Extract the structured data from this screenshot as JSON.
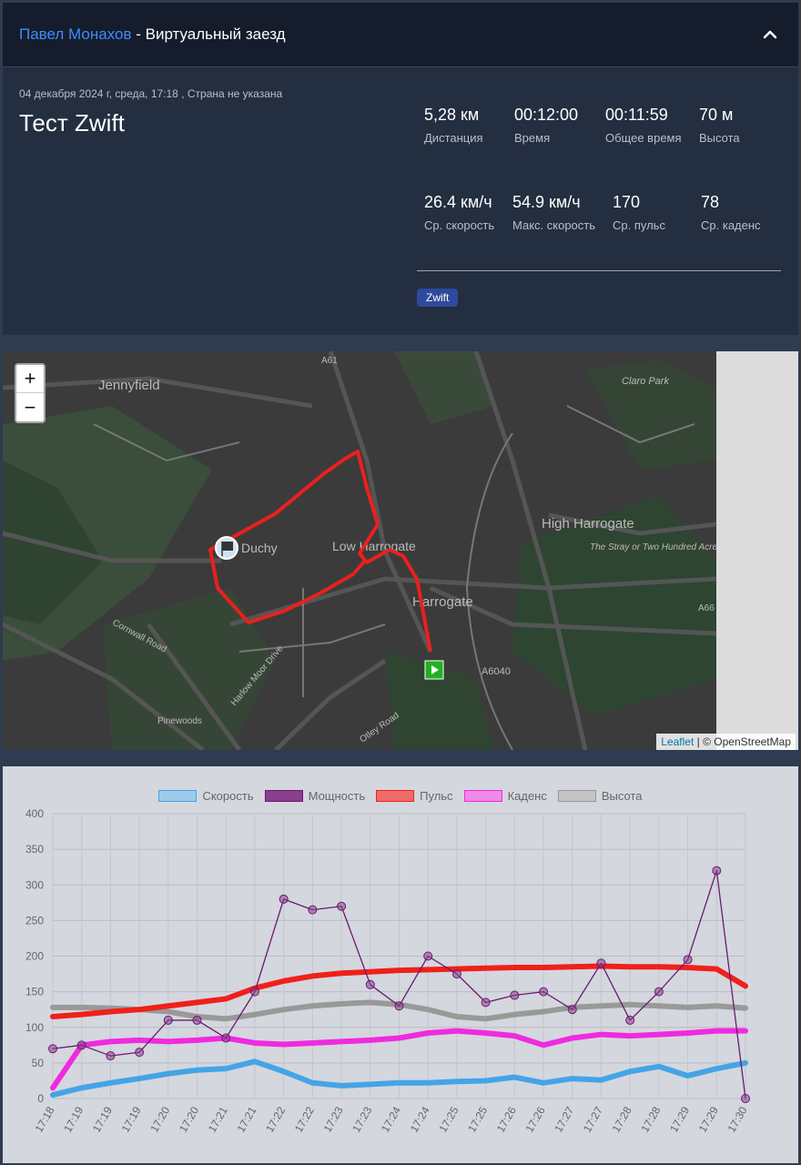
{
  "header": {
    "athlete_name": "Павел Монахов",
    "separator": " - ",
    "activity_type": "Виртуальный заезд",
    "collapse_icon": "chevron-up-icon"
  },
  "activity": {
    "meta": "04 декабря 2024 г, среда, 17:18 , Страна не указана",
    "title": "Тест Zwift",
    "stats": [
      {
        "value": "5,28 км",
        "label": "Дистанция"
      },
      {
        "value": "00:12:00",
        "label": "Время"
      },
      {
        "value": "00:11:59",
        "label": "Общее время"
      },
      {
        "value": "70 м",
        "label": "Высота"
      },
      {
        "value": "26.4 км/ч",
        "label": "Ср. скорость"
      },
      {
        "value": "54.9 км/ч",
        "label": "Макс. скорость"
      },
      {
        "value": "170",
        "label": "Ср. пульс"
      },
      {
        "value": "78",
        "label": "Ср. каденс"
      }
    ],
    "tag": "Zwift"
  },
  "map": {
    "zoom_in": "+",
    "zoom_out": "−",
    "attribution_link": "Leaflet",
    "attribution_text": " | © OpenStreetMap",
    "labels": [
      {
        "text": "Jennyfield"
      },
      {
        "text": "Duchy"
      },
      {
        "text": "Low Harrogate"
      },
      {
        "text": "Harrogate"
      },
      {
        "text": "High Harrogate"
      },
      {
        "text": "Claro Park"
      },
      {
        "text": "A61"
      },
      {
        "text": "A6040"
      },
      {
        "text": "A66"
      },
      {
        "text": "Cornwall Road"
      },
      {
        "text": "Harlow Moor Drive"
      },
      {
        "text": "Pinewoods"
      },
      {
        "text": "Otley Road"
      },
      {
        "text": "The Stray or Two Hundred Acre"
      }
    ],
    "start_marker": "play-icon",
    "finish_marker": "checkered-flag-icon",
    "route_color": "#e8211e"
  },
  "chart_data": {
    "type": "line",
    "x": [
      "17:18",
      "17:19",
      "17:19",
      "17:19",
      "17:20",
      "17:20",
      "17:21",
      "17:21",
      "17:22",
      "17:22",
      "17:23",
      "17:23",
      "17:24",
      "17:24",
      "17:25",
      "17:25",
      "17:26",
      "17:26",
      "17:27",
      "17:27",
      "17:28",
      "17:28",
      "17:29",
      "17:29",
      "17:30"
    ],
    "ylim": [
      0,
      400
    ],
    "yticks": [
      0,
      50,
      100,
      150,
      200,
      250,
      300,
      350,
      400
    ],
    "grid": true,
    "legend": "top",
    "series": [
      {
        "name": "Скорость",
        "color": "#9ecae9",
        "line": "#45a4e6",
        "values": [
          5,
          15,
          22,
          28,
          35,
          40,
          42,
          52,
          38,
          22,
          18,
          20,
          22,
          22,
          24,
          25,
          30,
          22,
          28,
          26,
          38,
          45,
          32,
          42,
          50
        ]
      },
      {
        "name": "Мощность",
        "color": "#8b3f8f",
        "line": "#6a1a70",
        "values": [
          70,
          75,
          60,
          65,
          110,
          110,
          85,
          150,
          280,
          265,
          270,
          160,
          130,
          200,
          175,
          135,
          145,
          150,
          125,
          190,
          110,
          150,
          195,
          320,
          0
        ]
      },
      {
        "name": "Пульс",
        "color": "#ef6c6c",
        "line": "#f0201a",
        "values": [
          115,
          118,
          122,
          125,
          130,
          135,
          140,
          155,
          165,
          172,
          176,
          178,
          180,
          181,
          182,
          183,
          184,
          184,
          185,
          186,
          185,
          185,
          184,
          182,
          158
        ]
      },
      {
        "name": "Каденс",
        "color": "#f08ae8",
        "line": "#f02ae0",
        "values": [
          15,
          75,
          80,
          82,
          80,
          82,
          85,
          78,
          76,
          78,
          80,
          82,
          85,
          92,
          95,
          92,
          88,
          75,
          85,
          90,
          88,
          90,
          92,
          95,
          95
        ]
      },
      {
        "name": "Высота",
        "color": "#c4c4c4",
        "line": "#999999",
        "values": [
          128,
          128,
          127,
          125,
          122,
          115,
          112,
          118,
          125,
          130,
          133,
          135,
          132,
          125,
          115,
          112,
          118,
          122,
          128,
          130,
          132,
          130,
          128,
          130,
          127
        ]
      }
    ]
  }
}
